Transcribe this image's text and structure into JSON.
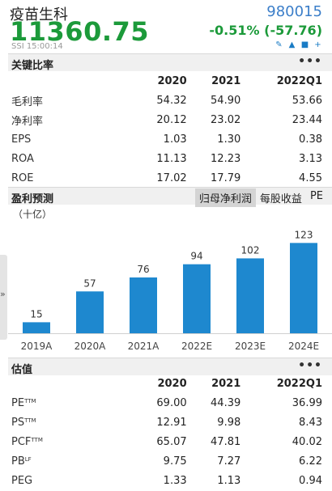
{
  "header": {
    "name": "疫苗生科",
    "code": "980015",
    "price": "11360.75",
    "change": "-0.51% (-57.76)",
    "meta": "SSI  15:00:14",
    "tools": [
      "✎",
      "▲",
      "■",
      "+"
    ]
  },
  "key_ratios": {
    "title": "关键比率",
    "more": "•••",
    "columns": [
      "2020",
      "2021",
      "2022Q1"
    ],
    "rows": [
      {
        "label": "毛利率",
        "values": [
          "54.32",
          "54.90",
          "53.66"
        ]
      },
      {
        "label": "净利率",
        "values": [
          "20.12",
          "23.02",
          "23.44"
        ]
      },
      {
        "label": "EPS",
        "values": [
          "1.03",
          "1.30",
          "0.38"
        ]
      },
      {
        "label": "ROA",
        "values": [
          "11.13",
          "12.23",
          "3.13"
        ]
      },
      {
        "label": "ROE",
        "values": [
          "17.02",
          "17.79",
          "4.55"
        ]
      }
    ]
  },
  "forecast": {
    "title": "盈利预测",
    "tabs": [
      "归母净利润",
      "每股收益",
      "PE"
    ],
    "active_tab": 0,
    "unit": "（十亿）"
  },
  "chart_data": {
    "type": "bar",
    "categories": [
      "2019A",
      "2020A",
      "2021A",
      "2022E",
      "2023E",
      "2024E"
    ],
    "values": [
      15,
      57,
      76,
      94,
      102,
      123
    ],
    "data_labels": [
      "15",
      "57",
      "76",
      "94",
      "102",
      "123"
    ],
    "ylim": [
      0,
      130
    ],
    "color": "#1e88cf",
    "grid": false
  },
  "valuation": {
    "title": "估值",
    "more": "•••",
    "columns": [
      "2020",
      "2021",
      "2022Q1"
    ],
    "rows": [
      {
        "label": "PE",
        "sup": "TTM",
        "values": [
          "69.00",
          "44.39",
          "36.99"
        ]
      },
      {
        "label": "PS",
        "sup": "TTM",
        "values": [
          "12.91",
          "9.98",
          "8.43"
        ]
      },
      {
        "label": "PCF",
        "sup": "TTM",
        "values": [
          "65.07",
          "47.81",
          "40.02"
        ]
      },
      {
        "label": "PB",
        "sup": "LF",
        "values": [
          "9.75",
          "7.27",
          "6.22"
        ]
      },
      {
        "label": "PEG",
        "sup": "",
        "values": [
          "1.33",
          "1.13",
          "0.94"
        ]
      }
    ]
  },
  "colors": {
    "accent_green": "#1c9a3a",
    "code_blue": "#3b7ec9",
    "bar_blue": "#1e88cf"
  }
}
